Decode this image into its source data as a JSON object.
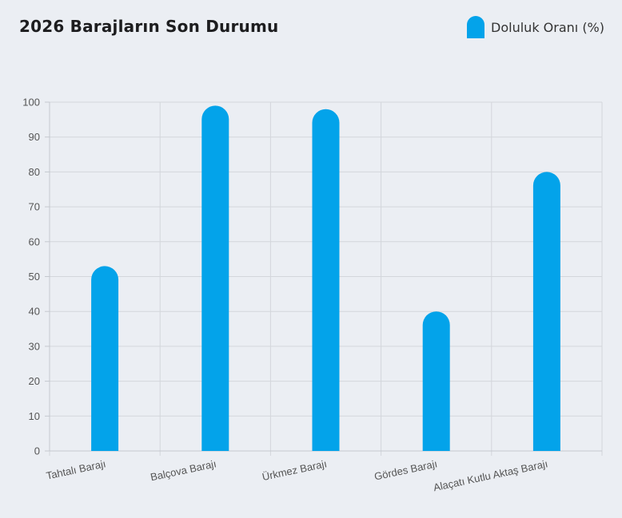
{
  "colors": {
    "bar": "#03a3ea",
    "grid": "#d3d6db",
    "axis": "#c4c8cf"
  },
  "chart_data": {
    "type": "bar",
    "title": "2026 Barajların Son Durumu",
    "categories": [
      "Tahtalı Barajı",
      "Balçova Barajı",
      "Ürkmez Barajı",
      "Gördes Barajı",
      "Alaçatı Kutlu Aktaş Barajı"
    ],
    "series": [
      {
        "name": "Doluluk Oranı (%)",
        "values": [
          53,
          99,
          98,
          40,
          80
        ]
      }
    ],
    "ylim": [
      0,
      100
    ],
    "yticks": [
      "0",
      "10",
      "20",
      "30",
      "40",
      "50",
      "60",
      "70",
      "80",
      "90",
      "100"
    ],
    "grid": true,
    "legend_position": "top-right",
    "xlabel": "",
    "ylabel": ""
  }
}
